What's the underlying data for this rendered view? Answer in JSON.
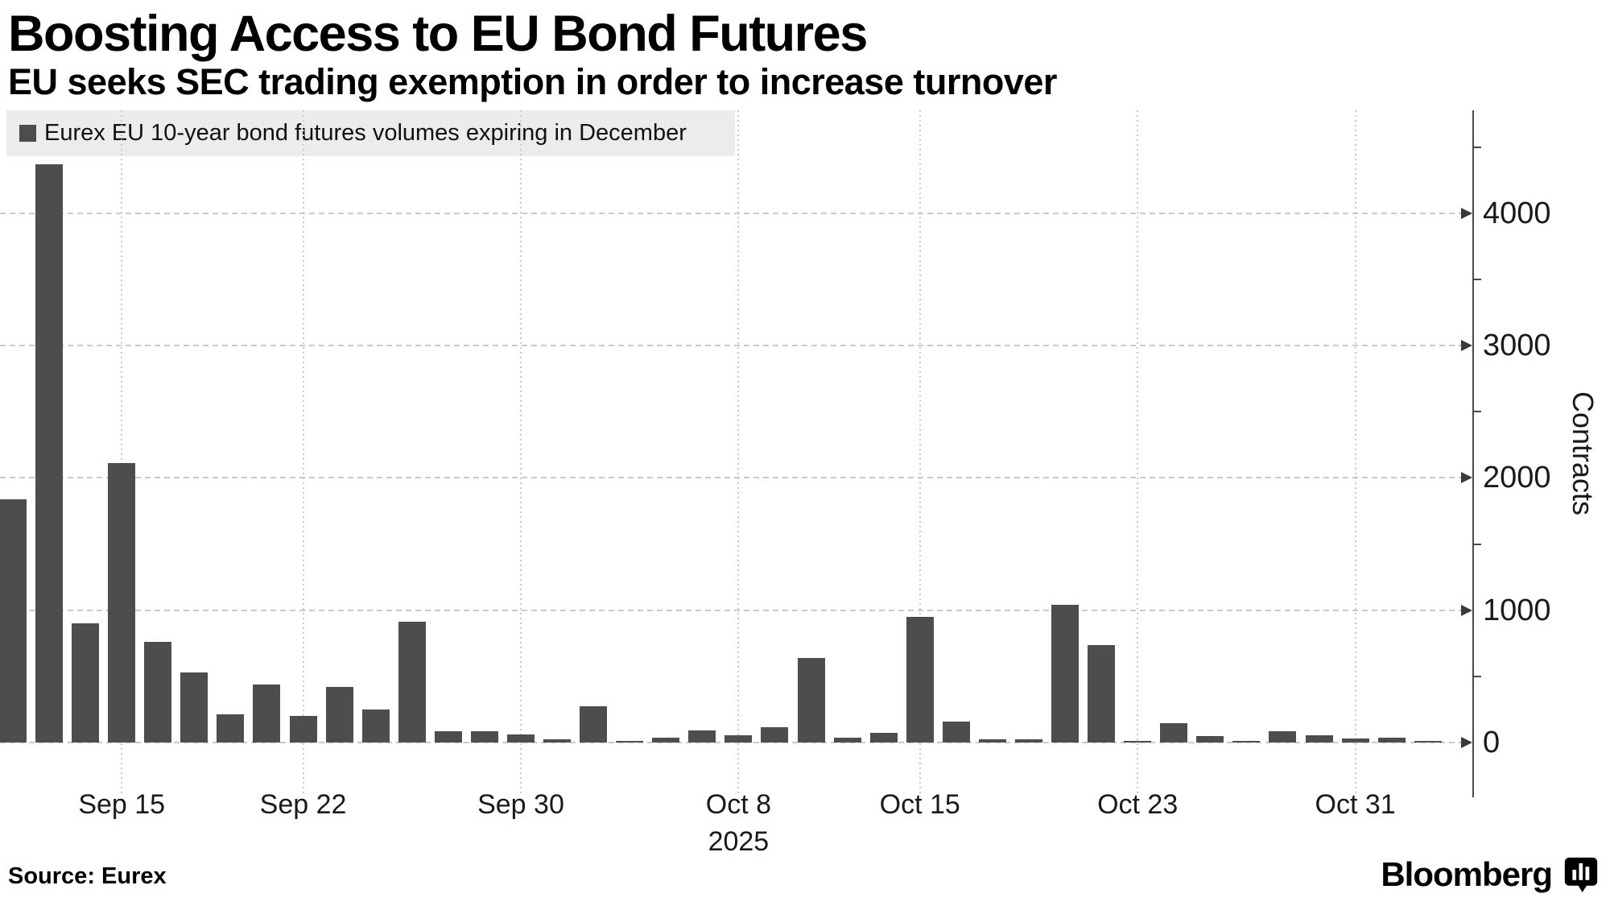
{
  "header": {
    "title": "Boosting Access to EU Bond Futures",
    "subtitle": "EU seeks SEC trading exemption in order to increase turnover"
  },
  "legend": {
    "label": "Eurex EU 10-year bond futures volumes expiring in December",
    "marker_color": "#4d4d4d"
  },
  "chart_data": {
    "type": "bar",
    "title": "Eurex EU 10-year bond futures volumes expiring in December",
    "ylabel": "Contracts",
    "categories": [
      "Sep 10",
      "Sep 11",
      "Sep 12",
      "Sep 15",
      "Sep 16",
      "Sep 17",
      "Sep 18",
      "Sep 19",
      "Sep 22",
      "Sep 23",
      "Sep 24",
      "Sep 25",
      "Sep 26",
      "Sep 29",
      "Sep 30",
      "Oct 1",
      "Oct 2",
      "Oct 3",
      "Oct 6",
      "Oct 7",
      "Oct 8",
      "Oct 9",
      "Oct 10",
      "Oct 13",
      "Oct 14",
      "Oct 15",
      "Oct 16",
      "Oct 17",
      "Oct 20",
      "Oct 21",
      "Oct 22",
      "Oct 23",
      "Oct 24",
      "Oct 27",
      "Oct 28",
      "Oct 29",
      "Oct 30",
      "Oct 31",
      "Nov 3",
      "Nov 4"
    ],
    "values": [
      1840,
      4370,
      900,
      2110,
      760,
      530,
      210,
      440,
      200,
      420,
      250,
      910,
      85,
      85,
      60,
      25,
      275,
      15,
      35,
      90,
      55,
      115,
      640,
      35,
      75,
      950,
      160,
      25,
      25,
      1040,
      735,
      12,
      145,
      50,
      12,
      85,
      55,
      30,
      35,
      10
    ],
    "x_ticks": [
      {
        "label": "Sep 15",
        "index": 3
      },
      {
        "label": "Sep 22",
        "index": 8
      },
      {
        "label": "Sep 30",
        "index": 14
      },
      {
        "label": "Oct 8",
        "index": 20
      },
      {
        "label": "Oct 15",
        "index": 25
      },
      {
        "label": "Oct 23",
        "index": 31
      },
      {
        "label": "Oct 31",
        "index": 37
      }
    ],
    "x_year_label": {
      "label": "2025",
      "index": 20
    },
    "y_ticks": [
      0,
      1000,
      2000,
      3000,
      4000
    ],
    "y_minor_ticks": [
      500,
      1500,
      2500,
      3500,
      4500
    ],
    "ylim": [
      0,
      4780
    ],
    "grid": "dashed gridlines at labeled x and y ticks",
    "legend_position": "top-left",
    "bar_color": "#4d4d4d"
  },
  "footer": {
    "source": "Source: Eurex",
    "brand": "Bloomberg",
    "brand_icon": "bloomberg-chart-bubble-icon"
  },
  "colors": {
    "background": "#ffffff",
    "bar": "#4d4d4d",
    "legend_bg": "#ececec",
    "grid": "#c9c9c9",
    "axis": "#4a4a4a",
    "text": "#000000",
    "tick_text": "#1a1a1a"
  }
}
